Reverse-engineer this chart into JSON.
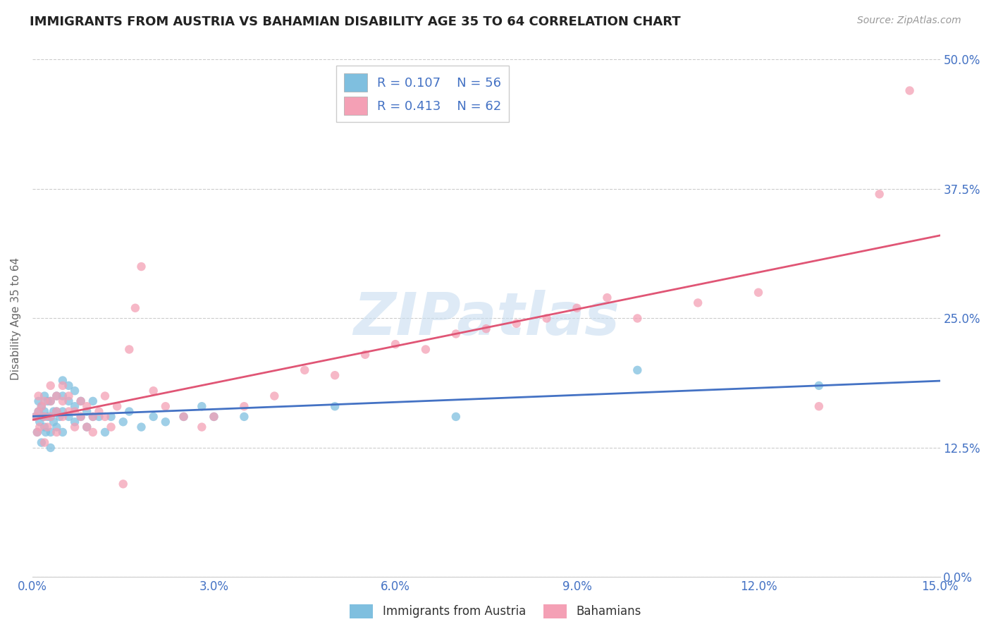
{
  "title": "IMMIGRANTS FROM AUSTRIA VS BAHAMIAN DISABILITY AGE 35 TO 64 CORRELATION CHART",
  "source_text": "Source: ZipAtlas.com",
  "ylabel": "Disability Age 35 to 64",
  "xlim": [
    0.0,
    0.15
  ],
  "ylim": [
    0.0,
    0.5
  ],
  "xticks": [
    0.0,
    0.03,
    0.06,
    0.09,
    0.12,
    0.15
  ],
  "xtick_labels": [
    "0.0%",
    "3.0%",
    "6.0%",
    "9.0%",
    "12.0%",
    "15.0%"
  ],
  "yticks": [
    0.0,
    0.125,
    0.25,
    0.375,
    0.5
  ],
  "ytick_labels": [
    "0.0%",
    "12.5%",
    "25.0%",
    "37.5%",
    "50.0%"
  ],
  "blue_color": "#7fbfdf",
  "pink_color": "#f4a0b5",
  "blue_line_color": "#4472c4",
  "pink_line_color": "#e05575",
  "R_blue": 0.107,
  "N_blue": 56,
  "R_pink": 0.413,
  "N_pink": 62,
  "watermark_text": "ZIPatlas",
  "legend_label_blue": "Immigrants from Austria",
  "legend_label_pink": "Bahamians",
  "blue_x": [
    0.0005,
    0.0008,
    0.001,
    0.001,
    0.0012,
    0.0015,
    0.0015,
    0.0018,
    0.002,
    0.002,
    0.002,
    0.0022,
    0.0025,
    0.0025,
    0.003,
    0.003,
    0.003,
    0.003,
    0.0035,
    0.0035,
    0.004,
    0.004,
    0.004,
    0.0045,
    0.005,
    0.005,
    0.005,
    0.005,
    0.006,
    0.006,
    0.006,
    0.007,
    0.007,
    0.007,
    0.008,
    0.008,
    0.009,
    0.009,
    0.01,
    0.01,
    0.011,
    0.012,
    0.013,
    0.015,
    0.016,
    0.018,
    0.02,
    0.022,
    0.025,
    0.028,
    0.03,
    0.035,
    0.05,
    0.07,
    0.1,
    0.13
  ],
  "blue_y": [
    0.155,
    0.14,
    0.16,
    0.17,
    0.15,
    0.13,
    0.165,
    0.155,
    0.145,
    0.16,
    0.175,
    0.14,
    0.155,
    0.17,
    0.125,
    0.14,
    0.155,
    0.17,
    0.15,
    0.16,
    0.145,
    0.16,
    0.175,
    0.155,
    0.14,
    0.16,
    0.175,
    0.19,
    0.155,
    0.17,
    0.185,
    0.15,
    0.165,
    0.18,
    0.155,
    0.17,
    0.145,
    0.16,
    0.155,
    0.17,
    0.155,
    0.14,
    0.155,
    0.15,
    0.16,
    0.145,
    0.155,
    0.15,
    0.155,
    0.165,
    0.155,
    0.155,
    0.165,
    0.155,
    0.2,
    0.185
  ],
  "pink_x": [
    0.0005,
    0.0008,
    0.001,
    0.001,
    0.0012,
    0.0015,
    0.002,
    0.002,
    0.002,
    0.0025,
    0.003,
    0.003,
    0.003,
    0.004,
    0.004,
    0.004,
    0.005,
    0.005,
    0.005,
    0.006,
    0.006,
    0.007,
    0.007,
    0.008,
    0.008,
    0.009,
    0.009,
    0.01,
    0.01,
    0.011,
    0.012,
    0.012,
    0.013,
    0.014,
    0.015,
    0.016,
    0.017,
    0.018,
    0.02,
    0.022,
    0.025,
    0.028,
    0.03,
    0.035,
    0.04,
    0.045,
    0.05,
    0.055,
    0.06,
    0.065,
    0.07,
    0.075,
    0.08,
    0.085,
    0.09,
    0.095,
    0.1,
    0.11,
    0.12,
    0.13,
    0.14,
    0.145
  ],
  "pink_y": [
    0.155,
    0.14,
    0.16,
    0.175,
    0.145,
    0.165,
    0.13,
    0.155,
    0.17,
    0.145,
    0.155,
    0.17,
    0.185,
    0.14,
    0.16,
    0.175,
    0.155,
    0.17,
    0.185,
    0.16,
    0.175,
    0.145,
    0.16,
    0.155,
    0.17,
    0.145,
    0.165,
    0.155,
    0.14,
    0.16,
    0.155,
    0.175,
    0.145,
    0.165,
    0.09,
    0.22,
    0.26,
    0.3,
    0.18,
    0.165,
    0.155,
    0.145,
    0.155,
    0.165,
    0.175,
    0.2,
    0.195,
    0.215,
    0.225,
    0.22,
    0.235,
    0.24,
    0.245,
    0.25,
    0.26,
    0.27,
    0.25,
    0.265,
    0.275,
    0.165,
    0.37,
    0.47
  ]
}
